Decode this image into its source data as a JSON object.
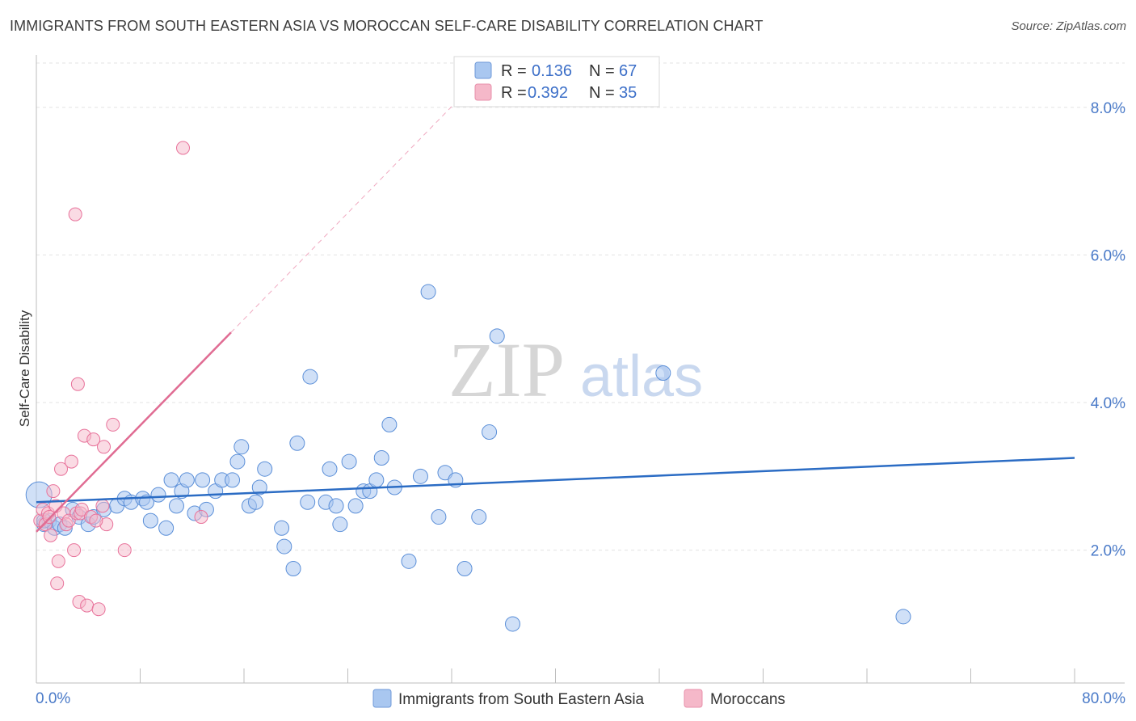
{
  "title": "IMMIGRANTS FROM SOUTH EASTERN ASIA VS MOROCCAN SELF-CARE DISABILITY CORRELATION CHART",
  "source": "Source: ZipAtlas.com",
  "watermark": {
    "zip": "ZIP",
    "atlas": "atlas"
  },
  "legend": {
    "r_label": "R =",
    "n_label": "N =",
    "rows": [
      {
        "r": "0.136",
        "n": "67",
        "color": "#a9c7f0"
      },
      {
        "r": "0.392",
        "n": "35",
        "color": "#f5b8c9"
      }
    ]
  },
  "chart_data": {
    "type": "scatter",
    "title": "IMMIGRANTS FROM SOUTH EASTERN ASIA VS MOROCCAN SELF-CARE DISABILITY CORRELATION CHART",
    "xlabel": "",
    "ylabel": "Self-Care Disability",
    "xlim": [
      0,
      80
    ],
    "ylim": [
      0.2,
      8.6
    ],
    "x_tick_labels": [
      "0.0%",
      "80.0%"
    ],
    "y_ticks": [
      2.0,
      4.0,
      6.0,
      8.0
    ],
    "y_tick_labels": [
      "2.0%",
      "4.0%",
      "6.0%",
      "8.0%"
    ],
    "grid": true,
    "colors": {
      "blue": "#5b8fd8",
      "blue_fill": "#a9c7f0",
      "pink": "#e8739b",
      "pink_fill": "#f5b8c9",
      "blue_line": "#2b6cc4",
      "pink_line": "#e06c93"
    },
    "series": [
      {
        "name": "Immigrants from South Eastern Asia",
        "points": [
          [
            0.2,
            2.75
          ],
          [
            0.6,
            2.35
          ],
          [
            1.0,
            2.4
          ],
          [
            1.4,
            2.3
          ],
          [
            1.8,
            2.35
          ],
          [
            2.2,
            2.3
          ],
          [
            2.8,
            2.55
          ],
          [
            3.3,
            2.45
          ],
          [
            4.0,
            2.35
          ],
          [
            4.4,
            2.45
          ],
          [
            5.2,
            2.55
          ],
          [
            6.2,
            2.6
          ],
          [
            6.8,
            2.7
          ],
          [
            7.3,
            2.65
          ],
          [
            8.2,
            2.7
          ],
          [
            8.5,
            2.65
          ],
          [
            8.8,
            2.4
          ],
          [
            9.4,
            2.75
          ],
          [
            10.0,
            2.3
          ],
          [
            10.4,
            2.95
          ],
          [
            10.8,
            2.6
          ],
          [
            11.2,
            2.8
          ],
          [
            11.6,
            2.95
          ],
          [
            12.2,
            2.5
          ],
          [
            12.8,
            2.95
          ],
          [
            13.1,
            2.55
          ],
          [
            13.8,
            2.8
          ],
          [
            14.3,
            2.95
          ],
          [
            15.1,
            2.95
          ],
          [
            15.5,
            3.2
          ],
          [
            15.8,
            3.4
          ],
          [
            16.4,
            2.6
          ],
          [
            16.9,
            2.65
          ],
          [
            17.2,
            2.85
          ],
          [
            17.6,
            3.1
          ],
          [
            18.9,
            2.3
          ],
          [
            19.1,
            2.05
          ],
          [
            19.8,
            1.75
          ],
          [
            20.1,
            3.45
          ],
          [
            20.9,
            2.65
          ],
          [
            21.1,
            4.35
          ],
          [
            22.3,
            2.65
          ],
          [
            22.6,
            3.1
          ],
          [
            23.1,
            2.6
          ],
          [
            23.4,
            2.35
          ],
          [
            24.1,
            3.2
          ],
          [
            24.6,
            2.6
          ],
          [
            25.2,
            2.8
          ],
          [
            25.7,
            2.8
          ],
          [
            26.2,
            2.95
          ],
          [
            26.6,
            3.25
          ],
          [
            27.2,
            3.7
          ],
          [
            27.6,
            2.85
          ],
          [
            28.7,
            1.85
          ],
          [
            29.6,
            3.0
          ],
          [
            30.2,
            5.5
          ],
          [
            31.0,
            2.45
          ],
          [
            31.5,
            3.05
          ],
          [
            32.3,
            2.95
          ],
          [
            33.0,
            1.75
          ],
          [
            34.1,
            2.45
          ],
          [
            34.9,
            3.6
          ],
          [
            35.5,
            4.9
          ],
          [
            36.7,
            1.0
          ],
          [
            48.3,
            4.4
          ],
          [
            66.8,
            1.1
          ],
          [
            0.6,
            2.4
          ]
        ]
      },
      {
        "name": "Moroccans",
        "points": [
          [
            0.3,
            2.4
          ],
          [
            0.5,
            2.55
          ],
          [
            0.7,
            2.35
          ],
          [
            0.9,
            2.5
          ],
          [
            1.1,
            2.2
          ],
          [
            1.3,
            2.8
          ],
          [
            1.5,
            2.6
          ],
          [
            1.7,
            1.85
          ],
          [
            1.6,
            1.55
          ],
          [
            1.9,
            3.1
          ],
          [
            2.1,
            2.5
          ],
          [
            2.3,
            2.35
          ],
          [
            2.5,
            2.4
          ],
          [
            2.7,
            3.2
          ],
          [
            2.9,
            2.0
          ],
          [
            3.1,
            2.5
          ],
          [
            3.3,
            1.3
          ],
          [
            3.4,
            2.5
          ],
          [
            3.5,
            2.55
          ],
          [
            3.7,
            3.55
          ],
          [
            3.9,
            1.25
          ],
          [
            4.2,
            2.45
          ],
          [
            4.4,
            3.5
          ],
          [
            4.8,
            1.2
          ],
          [
            5.1,
            2.6
          ],
          [
            5.4,
            2.35
          ],
          [
            5.9,
            3.7
          ],
          [
            6.8,
            2.0
          ],
          [
            11.3,
            7.45
          ],
          [
            12.7,
            2.45
          ],
          [
            3.0,
            6.55
          ],
          [
            3.2,
            4.25
          ],
          [
            4.6,
            2.4
          ],
          [
            5.2,
            3.4
          ],
          [
            1.0,
            2.45
          ]
        ]
      }
    ],
    "trend_lines": [
      {
        "series": "Immigrants from South Eastern Asia",
        "x": [
          0,
          80
        ],
        "y": [
          2.65,
          3.25
        ]
      },
      {
        "series": "Moroccans",
        "x": [
          0,
          15
        ],
        "y": [
          2.25,
          4.95
        ],
        "dashed_extension_to_x": 32
      }
    ]
  },
  "bottom_legend": {
    "items": [
      {
        "label": "Immigrants from South Eastern Asia",
        "color": "#a9c7f0"
      },
      {
        "label": "Moroccans",
        "color": "#f5b8c9"
      }
    ]
  }
}
